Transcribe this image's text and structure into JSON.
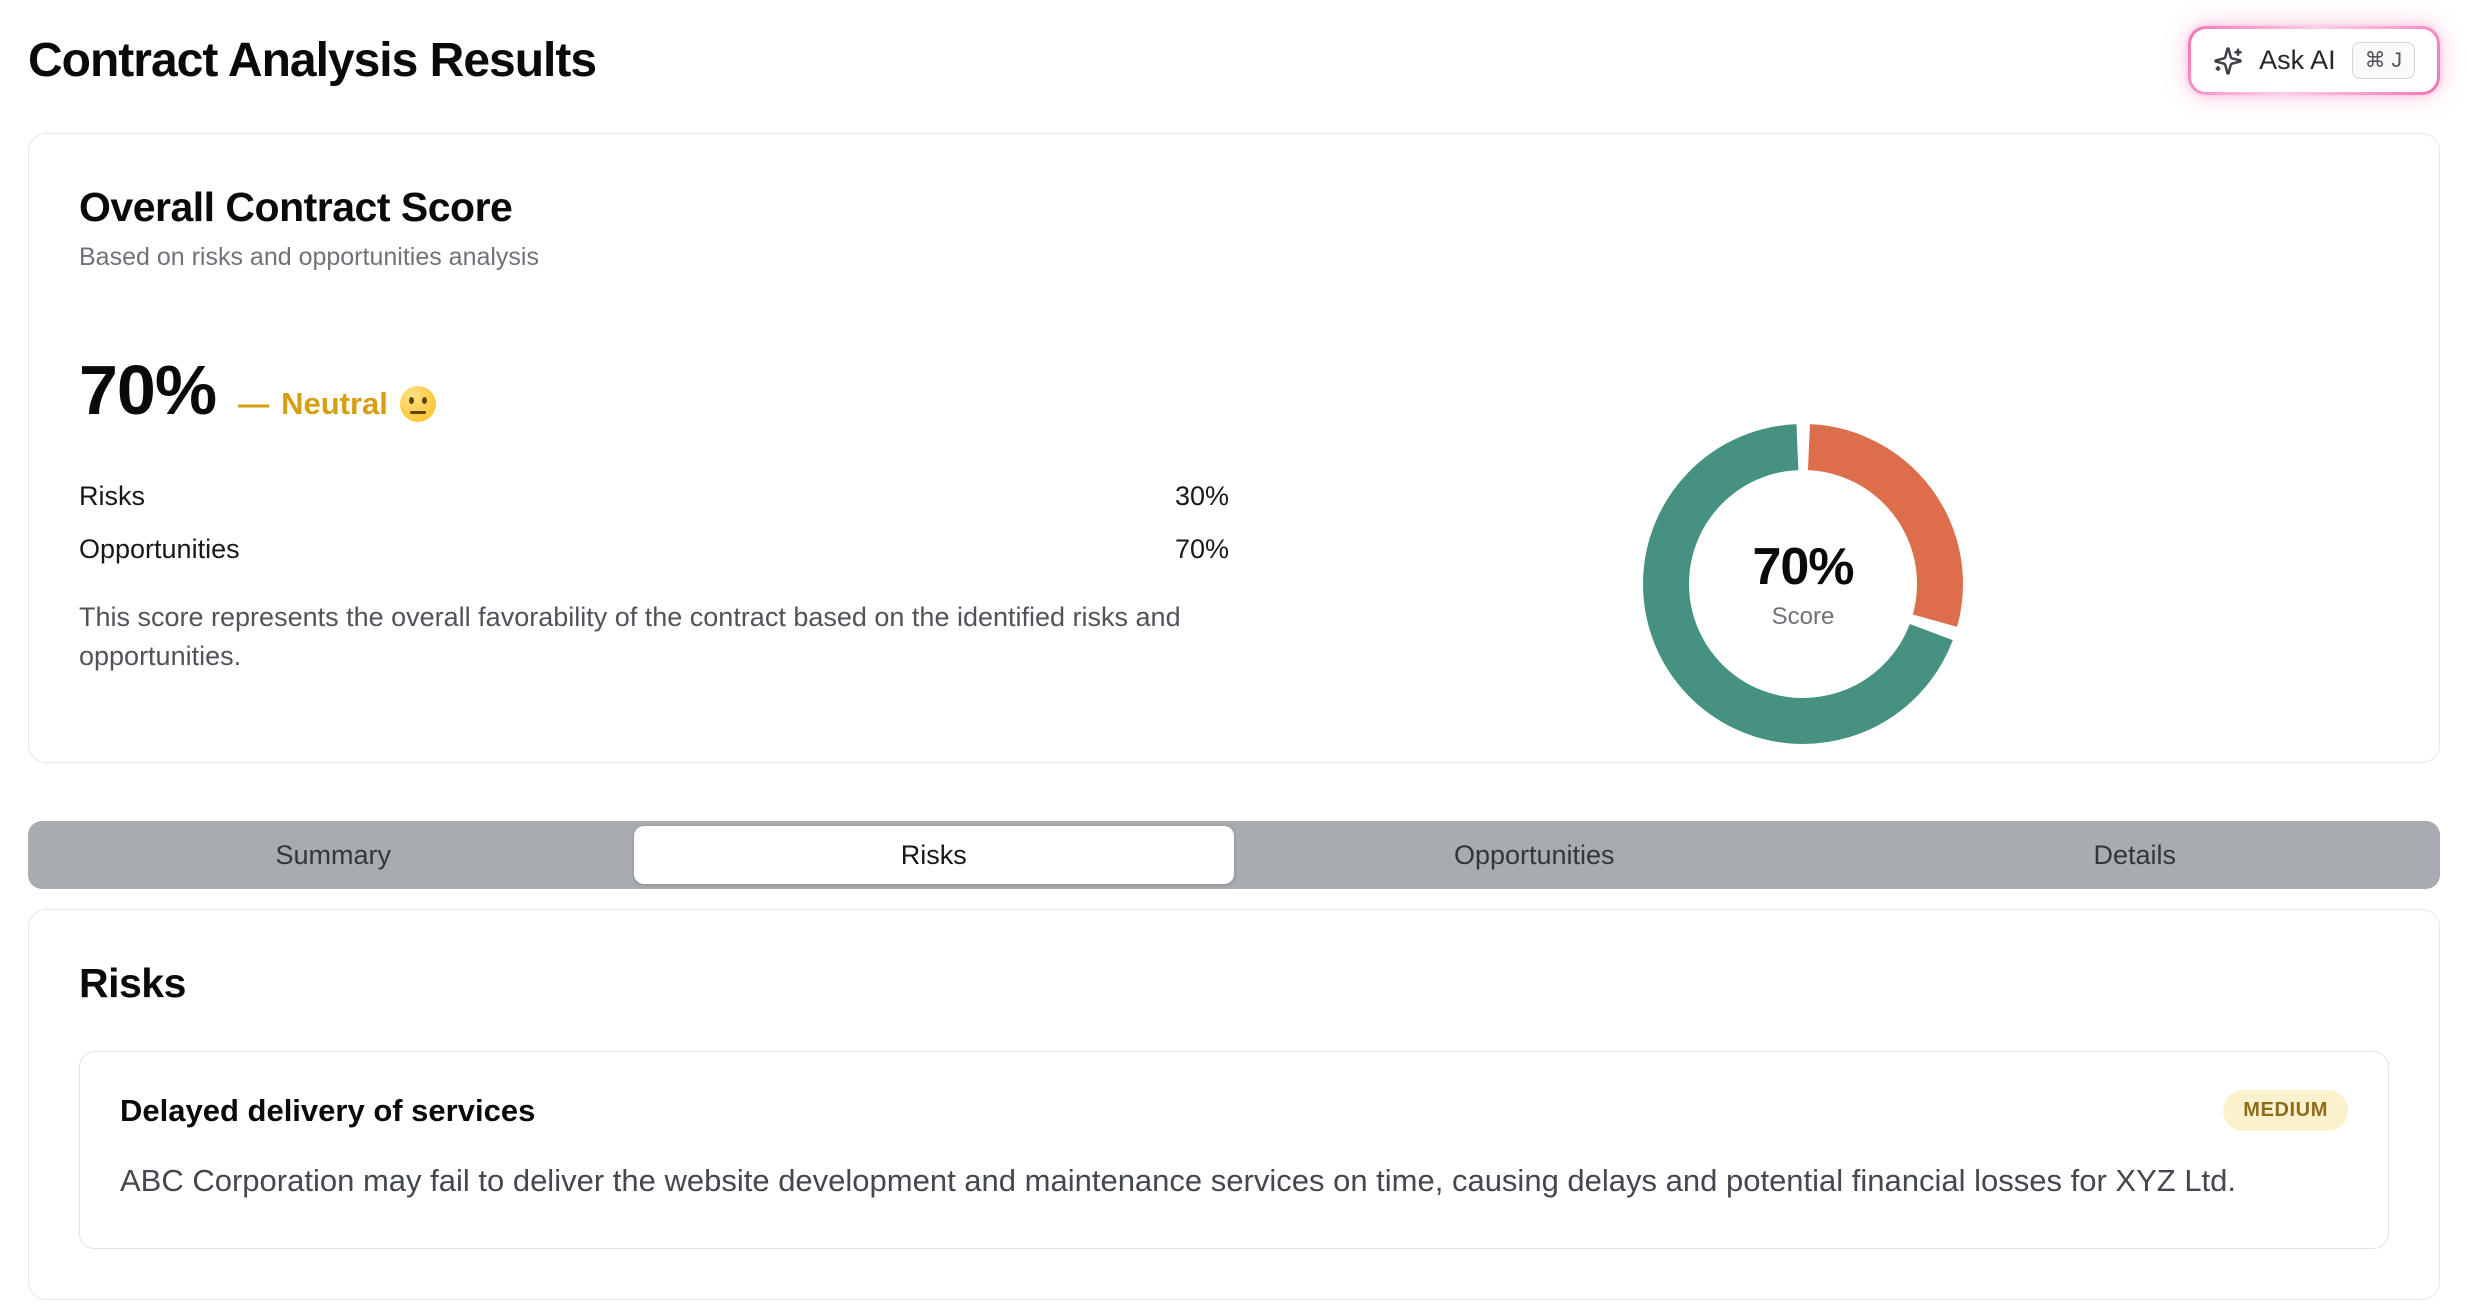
{
  "page": {
    "title": "Contract Analysis Results"
  },
  "ask_ai": {
    "label": "Ask AI",
    "shortcut": "⌘ J",
    "icon": "sparkles-icon"
  },
  "score_card": {
    "title": "Overall Contract Score",
    "subtitle": "Based on risks and opportunities analysis",
    "score": "70%",
    "sentiment_dash": "—",
    "sentiment": "Neutral",
    "sentiment_emoji": "neutral-face",
    "rows": [
      {
        "label": "Risks",
        "value": "30%"
      },
      {
        "label": "Opportunities",
        "value": "70%"
      }
    ],
    "description": "This score represents the overall favorability of the contract based on the identified risks and opportunities.",
    "donut_center_value": "70%",
    "donut_center_label": "Score"
  },
  "tabs": [
    {
      "label": "Summary",
      "active": false
    },
    {
      "label": "Risks",
      "active": true
    },
    {
      "label": "Opportunities",
      "active": false
    },
    {
      "label": "Details",
      "active": false
    }
  ],
  "risks_section": {
    "title": "Risks",
    "items": [
      {
        "title": "Delayed delivery of services",
        "severity": "MEDIUM",
        "description": "ABC Corporation may fail to deliver the website development and maintenance services on time, causing delays and potential financial losses for XYZ Ltd."
      }
    ]
  },
  "chart_data": {
    "type": "pie",
    "subtype": "donut",
    "title": "Overall Contract Score",
    "slices": [
      {
        "label": "Risks",
        "value": 30,
        "color": "#dd6e4c"
      },
      {
        "label": "Opportunities",
        "value": 70,
        "color": "#46917f"
      }
    ],
    "center_value": "70%",
    "center_label": "Score",
    "legend": "none"
  },
  "colors": {
    "accent_amber": "#d4a012",
    "donut_teal": "#46917f",
    "donut_orange": "#dd6e4c",
    "badge_bg": "#fbf2cd",
    "badge_text": "#8f6c1b",
    "tabs_bg": "#a8abb0",
    "ask_ai_glow": "#f472b6"
  }
}
